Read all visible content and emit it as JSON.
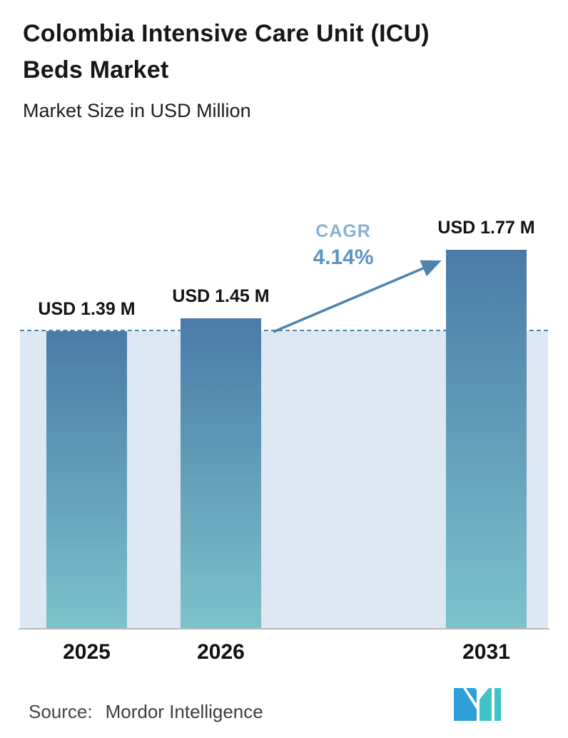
{
  "header": {
    "title_lines": [
      "Colombia Intensive Care Unit (ICU)",
      "Beds Market"
    ],
    "subtitle": "Market Size in USD Million"
  },
  "chart_data": {
    "type": "bar",
    "title": "Colombia Intensive Care Unit (ICU) Beds Market",
    "subtitle": "Market Size in USD Million",
    "unit": "USD Million",
    "categories": [
      "2025",
      "2026",
      "2031"
    ],
    "values": [
      1.39,
      1.45,
      1.77
    ],
    "bar_labels": [
      "USD 1.39 M",
      "USD 1.45 M",
      "USD 1.77 M"
    ],
    "xlabel": "",
    "ylabel": "Market Size in USD Million",
    "ylim": [
      0,
      1.95
    ],
    "grid": false,
    "legend": "none",
    "reference_line": {
      "value": 1.39,
      "style": "dashed"
    },
    "annotation": {
      "label": "CAGR",
      "value": "4.14%"
    },
    "colors": {
      "bar_gradient_top": "#4a7ba7",
      "bar_gradient_bottom": "#7cc2cb",
      "band_fill": "#dde8f2",
      "reference_line": "#4d84ad",
      "arrow": "#4d84ad",
      "annotation_label": "#8ab0d4",
      "annotation_value": "#5d94c6",
      "axis_line": "#b8b8b8",
      "text": "#141414"
    }
  },
  "footer": {
    "source_label": "Source:",
    "source_value": "Mordor Intelligence"
  },
  "logo": {
    "name": "Mordor Intelligence logo",
    "colors": {
      "blue": "#2e9fd9",
      "teal": "#3fc3c9"
    }
  }
}
